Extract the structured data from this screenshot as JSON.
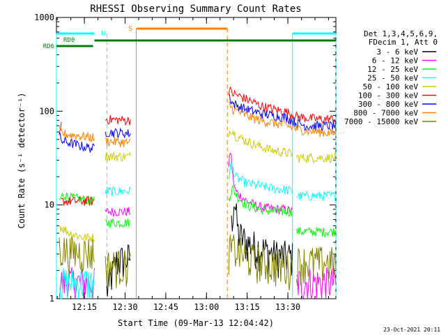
{
  "chart_data": {
    "type": "line",
    "title": "RHESSI Observing Summary Count Rates",
    "xlabel": "Start Time (09-Mar-13 12:04:42)",
    "ylabel": "Count Rate (s⁻¹ detector⁻¹)",
    "yscale": "log",
    "ylim": [
      1,
      1000
    ],
    "xlim_minutes": [
      0,
      103
    ],
    "x_ticks": [
      {
        "label": "12:15",
        "minute": 10.3
      },
      {
        "label": "12:30",
        "minute": 25.3
      },
      {
        "label": "12:45",
        "minute": 40.3
      },
      {
        "label": "13:00",
        "minute": 55.3
      },
      {
        "label": "13:15",
        "minute": 70.3
      },
      {
        "label": "13:30",
        "minute": 85.3
      }
    ],
    "y_ticks": [
      {
        "label": "1",
        "value": 1
      },
      {
        "label": "10",
        "value": 10
      },
      {
        "label": "100",
        "value": 100
      },
      {
        "label": "1000",
        "value": 1000
      }
    ],
    "legend_header": [
      "Det 1,3,4,5,6,9,",
      "FDecim 1, Att 0"
    ],
    "legend_position": "right",
    "timestamp": "23-Oct-2021 20:11",
    "series": [
      {
        "name": "3 - 6 keV",
        "color": "#000000",
        "segments": [
          {
            "x": [
              18.5,
              22,
              26,
              27.3
            ],
            "y": [
              1.2,
              2.5,
              2.7,
              2.8
            ]
          },
          {
            "x": [
              64.5,
              65.5,
              67,
              70,
              75,
              80,
              87
            ],
            "y": [
              6,
              12,
              5,
              4,
              3.5,
              3,
              2.8
            ]
          }
        ]
      },
      {
        "name": "6 - 12 keV",
        "color": "#ff00ff",
        "segments": [
          {
            "x": [
              1,
              14
            ],
            "y": [
              1.5,
              1.5
            ]
          },
          {
            "x": [
              18,
              27.3
            ],
            "y": [
              8.5,
              8.5
            ]
          },
          {
            "x": [
              63.5,
              64.2,
              65,
              66,
              70,
              75,
              80,
              84,
              87
            ],
            "y": [
              25,
              40,
              20,
              14,
              11,
              9.5,
              9,
              9,
              8.5
            ]
          },
          {
            "x": [
              88.5,
              103
            ],
            "y": [
              1.5,
              1.5
            ]
          }
        ]
      },
      {
        "name": "12 - 25 keV",
        "color": "#00ff00",
        "segments": [
          {
            "x": [
              1,
              2.5,
              5,
              10,
              14
            ],
            "y": [
              11,
              13,
              12,
              11.5,
              11
            ]
          },
          {
            "x": [
              18,
              27.3
            ],
            "y": [
              6.5,
              6.5
            ]
          },
          {
            "x": [
              63.5,
              65,
              67,
              70,
              75,
              80,
              85,
              87
            ],
            "y": [
              12,
              15,
              12,
              10,
              9,
              8.5,
              8.5,
              8.5
            ]
          },
          {
            "x": [
              88.5,
              103
            ],
            "y": [
              5.2,
              5.2
            ]
          }
        ]
      },
      {
        "name": "25 - 50 keV",
        "color": "#00ffff",
        "segments": [
          {
            "x": [
              1,
              14
            ],
            "y": [
              1.5,
              1.5
            ]
          },
          {
            "x": [
              18,
              27.3
            ],
            "y": [
              14,
              14
            ]
          },
          {
            "x": [
              63.5,
              64.3,
              66,
              70,
              75,
              80,
              85,
              87
            ],
            "y": [
              20,
              28,
              20,
              17,
              16,
              15,
              14.5,
              14
            ]
          },
          {
            "x": [
              88.5,
              103
            ],
            "y": [
              12.5,
              12.5
            ]
          }
        ]
      },
      {
        "name": "50 - 100 keV",
        "color": "#cccc00",
        "segments": [
          {
            "x": [
              1,
              5,
              10,
              14
            ],
            "y": [
              6,
              5,
              4.5,
              4.5
            ]
          },
          {
            "x": [
              18,
              27.3
            ],
            "y": [
              33,
              33
            ]
          },
          {
            "x": [
              63.5,
              64.5,
              66,
              70,
              75,
              80,
              85,
              87
            ],
            "y": [
              60,
              65,
              55,
              48,
              42,
              38,
              36,
              35
            ]
          },
          {
            "x": [
              88.5,
              103
            ],
            "y": [
              32,
              32
            ]
          }
        ]
      },
      {
        "name": "100 - 300 keV",
        "color": "#ff0000",
        "segments": [
          {
            "x": [
              1,
              1.8
            ],
            "y": [
              50,
              70
            ]
          },
          {
            "x": [
              1.8,
              14
            ],
            "y": [
              11,
              11
            ]
          },
          {
            "x": [
              18,
              27.3
            ],
            "y": [
              82,
              80
            ]
          },
          {
            "x": [
              63.5,
              65,
              70,
              75,
              80,
              85,
              88.5,
              92,
              97,
              103
            ],
            "y": [
              170,
              155,
              135,
              115,
              105,
              98,
              88,
              85,
              82,
              83
            ]
          }
        ]
      },
      {
        "name": "300 - 800 keV",
        "color": "#0000ff",
        "segments": [
          {
            "x": [
              1,
              2,
              5,
              10,
              14
            ],
            "y": [
              55,
              48,
              46,
              42,
              40
            ]
          },
          {
            "x": [
              18,
              27.3
            ],
            "y": [
              60,
              58
            ]
          },
          {
            "x": [
              63.5,
              65,
              70,
              75,
              80,
              85,
              88.5,
              92,
              97,
              103
            ],
            "y": [
              150,
              120,
              105,
              95,
              90,
              85,
              75,
              70,
              70,
              70
            ]
          }
        ]
      },
      {
        "name": "800 - 7000 keV",
        "color": "#ff8000",
        "segments": [
          {
            "x": [
              1,
              2,
              5,
              10,
              14
            ],
            "y": [
              63,
              58,
              56,
              54,
              52
            ]
          },
          {
            "x": [
              18,
              27.3
            ],
            "y": [
              48,
              46
            ]
          },
          {
            "x": [
              63.5,
              65,
              70,
              75,
              80,
              85,
              88.5,
              92,
              97,
              103
            ],
            "y": [
              120,
              105,
              90,
              80,
              75,
              70,
              65,
              62,
              60,
              58
            ]
          }
        ]
      },
      {
        "name": "7000 - 15000 keV",
        "color": "#808000",
        "segments": [
          {
            "x": [
              1,
              5,
              10,
              14
            ],
            "y": [
              3.5,
              3.2,
              3.2,
              3.2
            ]
          },
          {
            "x": [
              18,
              27.3
            ],
            "y": [
              2.3,
              2.3
            ]
          },
          {
            "x": [
              63.5,
              65,
              70,
              75,
              80,
              85,
              87
            ],
            "y": [
              3.2,
              3.5,
              2.8,
              2.5,
              2.3,
              2.2,
              2.2
            ]
          },
          {
            "x": [
              88.5,
              103
            ],
            "y": [
              2.5,
              2.5
            ]
          }
        ]
      }
    ],
    "annotations": {
      "N": {
        "label": "N",
        "color": "#00ffff",
        "bars": [
          {
            "x": [
              0,
              14
            ]
          },
          {
            "x": [
              87,
              103
            ]
          }
        ],
        "dashed_lines_minutes": [
          18.6,
          103
        ],
        "solid_lines_minutes": [
          0,
          87
        ]
      },
      "S": {
        "label": "S",
        "color": "#ff8000",
        "bars": [
          {
            "x": [
              29.5,
              63
            ]
          }
        ],
        "solid_lines_minutes": [
          29.4
        ],
        "dashed_lines_minutes": [
          63
        ]
      },
      "RD0": {
        "label": "RD0",
        "color": "#008000",
        "bar": {
          "x": [
            14,
            103
          ]
        }
      },
      "RD6": {
        "label": "RD6",
        "color": "#008000",
        "bar": {
          "x": [
            0,
            13.5
          ]
        }
      },
      "markers_minutes": [
        14
      ]
    }
  }
}
